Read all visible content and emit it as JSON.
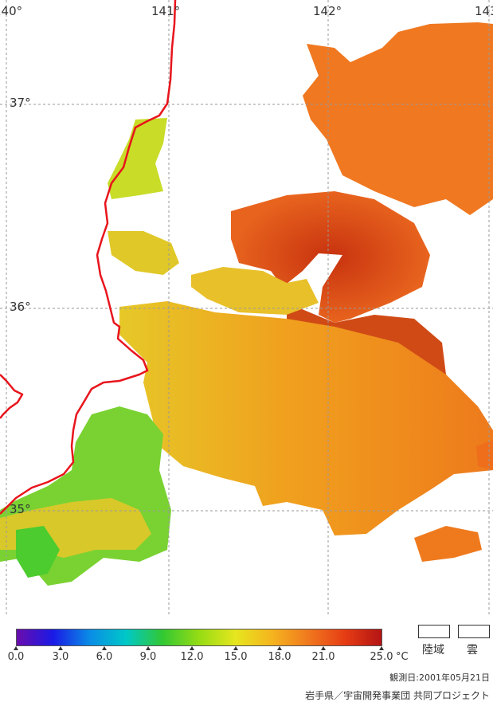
{
  "map": {
    "longitude_labels": [
      "140°",
      "141°",
      "142°",
      "143°"
    ],
    "latitude_labels": [
      "37°",
      "36°",
      "35°"
    ],
    "coastline_color": "#e8141c",
    "gridline_color": "#9a9a9a"
  },
  "legend": {
    "colorbar_stops": [
      "#6a0dad",
      "#1a1ae6",
      "#0a8ce6",
      "#00c8c8",
      "#32c832",
      "#96dc14",
      "#e6e61e",
      "#f5b41e",
      "#f0781e",
      "#e63c14",
      "#b41414"
    ],
    "ticks": [
      "0.0",
      "3.0",
      "6.0",
      "9.0",
      "12.0",
      "15.0",
      "18.0",
      "21.0",
      "25.0"
    ],
    "unit": "°C",
    "land_label": "陸域",
    "cloud_label": "雲"
  },
  "date_text": "観測日:2001年05月21日",
  "credit_text": "岩手県／宇宙開発事業団 共同プロジェクト"
}
